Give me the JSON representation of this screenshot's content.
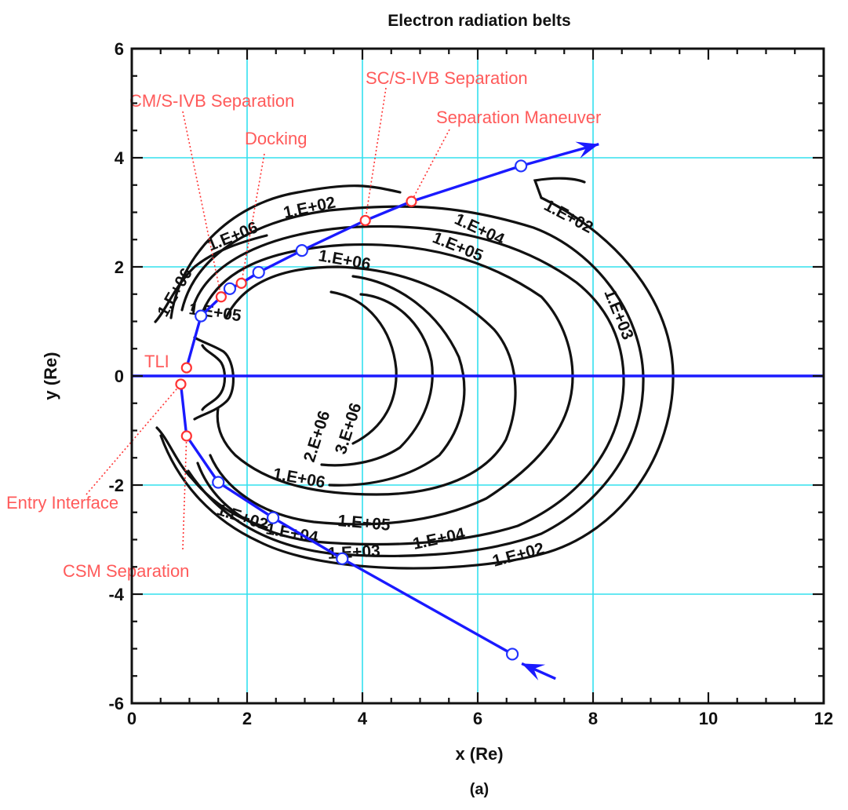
{
  "chart_data": {
    "type": "line",
    "title": "Electron radiation belts",
    "xlabel": "x (Re)",
    "ylabel": "y (Re)",
    "panel_label": "(a)",
    "xlim": [
      0,
      12
    ],
    "ylim": [
      -6,
      6
    ],
    "x_ticks": [
      "0",
      "2",
      "4",
      "6",
      "8",
      "10",
      "12"
    ],
    "y_ticks": [
      "6",
      "4",
      "2",
      "0",
      "-2",
      "-4",
      "-6"
    ],
    "grid": true,
    "grid_x": [
      2,
      4,
      6,
      8
    ],
    "grid_y": [
      4,
      2,
      -2,
      -4
    ],
    "colors": {
      "trajectory": "#1a1aff",
      "grid": "#33e0ee",
      "contour": "#111111",
      "event_marker": "#ff3333",
      "waypoint_marker": "#2233ff",
      "event_text": "#ff5a5a"
    },
    "series": [
      {
        "points": [
          {
            "x": 6.6,
            "y": -5.1
          },
          {
            "x": 3.65,
            "y": -3.35
          },
          {
            "x": 2.45,
            "y": -2.6
          },
          {
            "x": 1.5,
            "y": -1.95
          },
          {
            "x": 0.95,
            "y": -1.1
          },
          {
            "x": 0.85,
            "y": -0.15
          }
        ]
      },
      {
        "points": [
          {
            "x": 0.95,
            "y": 0.15
          },
          {
            "x": 1.2,
            "y": 1.1
          },
          {
            "x": 1.55,
            "y": 1.45
          },
          {
            "x": 1.7,
            "y": 1.6
          },
          {
            "x": 1.9,
            "y": 1.7
          },
          {
            "x": 2.2,
            "y": 1.9
          },
          {
            "x": 2.95,
            "y": 2.3
          },
          {
            "x": 4.05,
            "y": 2.85
          },
          {
            "x": 4.85,
            "y": 3.2
          },
          {
            "x": 6.75,
            "y": 3.85
          },
          {
            "x": 8.1,
            "y": 4.25
          }
        ]
      },
      {
        "points": [
          {
            "x": 0,
            "y": 0
          },
          {
            "x": 12,
            "y": 0
          }
        ]
      }
    ],
    "waypoints": [
      {
        "x": 6.6,
        "y": -5.1
      },
      {
        "x": 3.65,
        "y": -3.35
      },
      {
        "x": 2.45,
        "y": -2.6
      },
      {
        "x": 1.5,
        "y": -1.95
      },
      {
        "x": 1.2,
        "y": 1.1
      },
      {
        "x": 1.7,
        "y": 1.6
      },
      {
        "x": 2.2,
        "y": 1.9
      },
      {
        "x": 2.95,
        "y": 2.3
      },
      {
        "x": 6.75,
        "y": 3.85
      }
    ],
    "events": [
      {
        "name": "TLI",
        "x": 0.95,
        "y": 0.15
      },
      {
        "name": "Entry Interface",
        "x": 0.85,
        "y": -0.15
      },
      {
        "name": "CSM Separation",
        "x": 0.95,
        "y": -1.1
      },
      {
        "name": "CM/S-IVB Separation",
        "x": 1.55,
        "y": 1.45
      },
      {
        "name": "Docking",
        "x": 1.9,
        "y": 1.7
      },
      {
        "name": "SC/S-IVB Separation",
        "x": 4.05,
        "y": 2.85
      },
      {
        "name": "Separation Maneuver",
        "x": 4.85,
        "y": 3.2
      }
    ],
    "contour_labels": [
      "1.E+02",
      "1.E+02",
      "1.E+04",
      "1.E+05",
      "1.E+06",
      "1.E+03",
      "2.E+06",
      "3.E+06",
      "1.E+06",
      "1.E+05",
      "1.E+04",
      "1.E+02",
      "1.E+03",
      "1.E+04",
      "1.E+02",
      "1.E+05",
      "1.E+06",
      "1.E+06"
    ]
  }
}
